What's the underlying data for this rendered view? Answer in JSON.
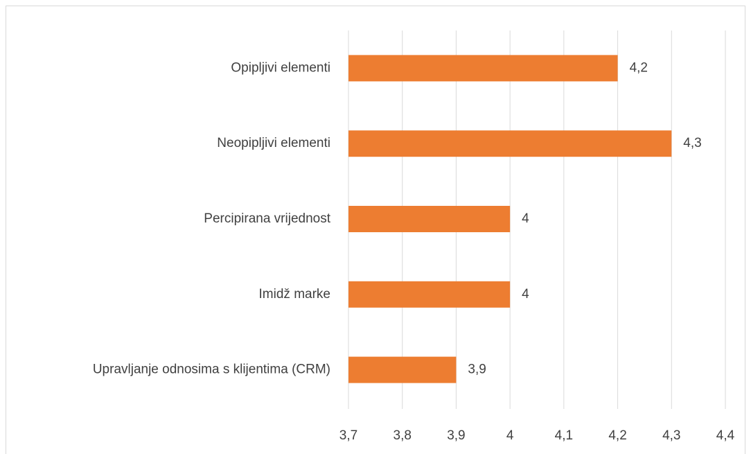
{
  "chart_data": {
    "type": "bar",
    "orientation": "horizontal",
    "categories": [
      "Opipljivi elementi",
      "Neopipljivi elementi",
      "Percipirana vrijednost",
      "Imidž marke",
      "Upravljanje odnosima s klijentima (CRM)"
    ],
    "values": [
      4.2,
      4.3,
      4.0,
      4.0,
      3.9
    ],
    "value_labels": [
      "4,2",
      "4,3",
      "4",
      "4",
      "3,9"
    ],
    "color": "#ed7d31",
    "xlim": [
      3.7,
      4.4
    ],
    "xticks": [
      {
        "value": 3.7,
        "label": "3,7"
      },
      {
        "value": 3.8,
        "label": "3,8"
      },
      {
        "value": 3.9,
        "label": "3,9"
      },
      4,
      {
        "value": 4.1,
        "label": "4,1"
      },
      {
        "value": 4.2,
        "label": "4,2"
      },
      {
        "value": 4.3,
        "label": "4,3"
      },
      {
        "value": 4.4,
        "label": "4,4"
      }
    ],
    "grid": true
  }
}
